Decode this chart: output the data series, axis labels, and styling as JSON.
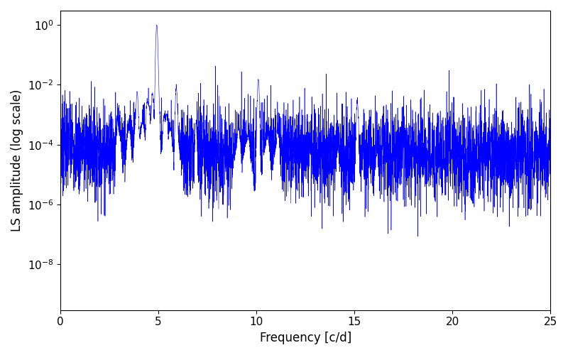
{
  "xlabel": "Frequency [c/d]",
  "ylabel": "LS amplitude (log scale)",
  "xlim": [
    0,
    25
  ],
  "ylim_log": [
    3e-10,
    3.0
  ],
  "line_color": "#0000ff",
  "background_color": "#ffffff",
  "freq_max": 25,
  "n_points": 5000,
  "seed": 7,
  "main_peak_freq": 4.92,
  "main_peak_amp": 1.0,
  "second_peak_freq": 10.1,
  "second_peak_amp": 0.015,
  "third_peak_freq": 15.15,
  "third_peak_amp": 0.0025,
  "noise_base": 5e-05,
  "noise_sigma": 1.8,
  "xlabel_fontsize": 12,
  "ylabel_fontsize": 12,
  "tick_labelsize": 11
}
